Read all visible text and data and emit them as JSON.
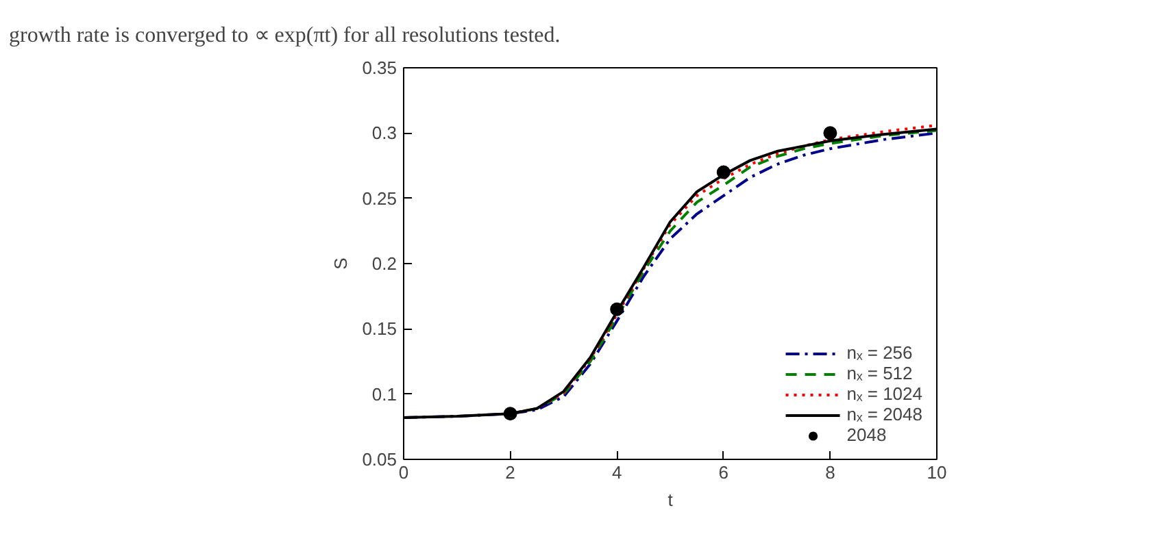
{
  "chart_data": {
    "type": "line",
    "xlabel": "t",
    "ylabel": "S",
    "annotations": [
      "growth rate is converged to ∝ exp(πt) for all resolutions tested."
    ],
    "xlim": [
      0,
      10
    ],
    "ylim": [
      0.05,
      0.35
    ],
    "xticks": [
      0,
      2,
      4,
      6,
      8,
      10
    ],
    "yticks": [
      0.05,
      0.1,
      0.15,
      0.2,
      0.25,
      0.3,
      0.35
    ],
    "grid": false,
    "legend": "bottom right",
    "series": [
      {
        "name": "nₓ = 256",
        "color": "#00008b",
        "line_style": "dashdot",
        "x": [
          0,
          1,
          2,
          2.5,
          3,
          3.5,
          4,
          4.5,
          5,
          5.5,
          6,
          6.5,
          7,
          7.5,
          8,
          9,
          10
        ],
        "values": [
          0.082,
          0.083,
          0.085,
          0.088,
          0.098,
          0.123,
          0.156,
          0.19,
          0.219,
          0.238,
          0.252,
          0.266,
          0.276,
          0.283,
          0.288,
          0.295,
          0.3
        ]
      },
      {
        "name": "nₓ = 512",
        "color": "#008000",
        "line_style": "dashed",
        "x": [
          2,
          2.5,
          3,
          3.5,
          4,
          4.5,
          5,
          5.5,
          6,
          6.5,
          7,
          7.5,
          8,
          9,
          10
        ],
        "values": [
          0.085,
          0.089,
          0.1,
          0.125,
          0.159,
          0.194,
          0.225,
          0.247,
          0.26,
          0.274,
          0.282,
          0.288,
          0.292,
          0.298,
          0.302
        ]
      },
      {
        "name": "nₓ = 1024",
        "color": "#ff0000",
        "line_style": "dotted",
        "x": [
          2,
          2.5,
          3,
          3.5,
          4,
          4.5,
          5,
          5.5,
          6,
          6.5,
          7,
          7.5,
          8,
          9,
          10
        ],
        "values": [
          0.085,
          0.089,
          0.101,
          0.127,
          0.161,
          0.196,
          0.23,
          0.252,
          0.265,
          0.276,
          0.284,
          0.29,
          0.295,
          0.301,
          0.306
        ]
      },
      {
        "name": "nₓ = 2048",
        "color": "#000000",
        "line_style": "solid",
        "x": [
          0,
          1,
          2,
          2.5,
          3,
          3.5,
          4,
          4.5,
          5,
          5.5,
          6,
          6.5,
          7,
          7.5,
          8,
          9,
          10
        ],
        "values": [
          0.082,
          0.083,
          0.085,
          0.089,
          0.102,
          0.128,
          0.163,
          0.197,
          0.232,
          0.255,
          0.268,
          0.279,
          0.286,
          0.29,
          0.294,
          0.299,
          0.303
        ]
      },
      {
        "name": "2048",
        "type": "scatter",
        "marker": "circle",
        "color": "#000000",
        "x": [
          2,
          4,
          6,
          8
        ],
        "values": [
          0.085,
          0.165,
          0.27,
          0.3
        ]
      }
    ]
  }
}
